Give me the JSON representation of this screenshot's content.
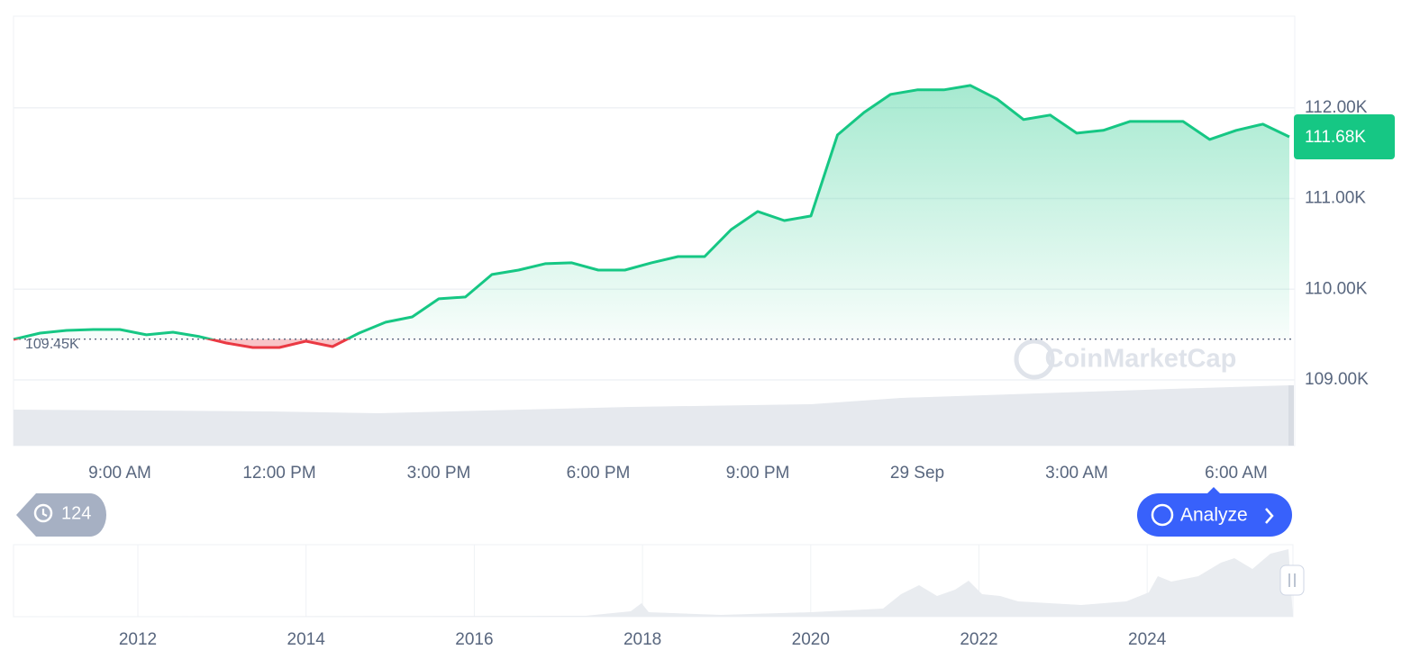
{
  "chart_data": {
    "type": "line",
    "categories": [
      null,
      null,
      null,
      null,
      "9:00 AM",
      null,
      null,
      null,
      null,
      null,
      "12:00 PM",
      null,
      null,
      null,
      null,
      null,
      "3:00 PM",
      null,
      null,
      null,
      null,
      null,
      "6:00 PM",
      null,
      null,
      null,
      null,
      null,
      "9:00 PM",
      null,
      null,
      null,
      null,
      null,
      "29 Sep",
      null,
      null,
      null,
      null,
      null,
      "3:00 AM",
      null,
      null,
      null,
      null,
      null,
      "6:00 AM",
      null,
      null
    ],
    "values": [
      109447,
      109516,
      109546,
      109556,
      109556,
      109497,
      109526,
      109477,
      109407,
      109357,
      109357,
      109427,
      109367,
      109516,
      109636,
      109695,
      109894,
      109914,
      110162,
      110211,
      110281,
      110291,
      110211,
      110211,
      110291,
      110360,
      110360,
      110658,
      110857,
      110757,
      110807,
      111701,
      111949,
      112148,
      112198,
      112198,
      112247,
      112098,
      111870,
      111920,
      111721,
      111751,
      111850,
      111850,
      111850,
      111651,
      111751,
      111820,
      111680
    ],
    "up_color": "#16c784",
    "down_color": "#ea3943",
    "open": {
      "value": 109450,
      "label": "109.45K"
    },
    "last": {
      "value": 111680,
      "label": "111.68K"
    },
    "ylim": [
      109000,
      113000
    ],
    "yticks": [
      {
        "value": 109000,
        "label": "109.00K"
      },
      {
        "value": 110000,
        "label": "110.00K"
      },
      {
        "value": 111000,
        "label": "111.00K"
      },
      {
        "value": 112000,
        "label": "112.00K"
      }
    ],
    "grid": true,
    "watermark": "CoinMarketCap",
    "minimap_years": [
      "2012",
      "2014",
      "2016",
      "2018",
      "2020",
      "2022",
      "2024"
    ]
  },
  "ui": {
    "history_count": 124,
    "analyze_button": "Analyze"
  }
}
